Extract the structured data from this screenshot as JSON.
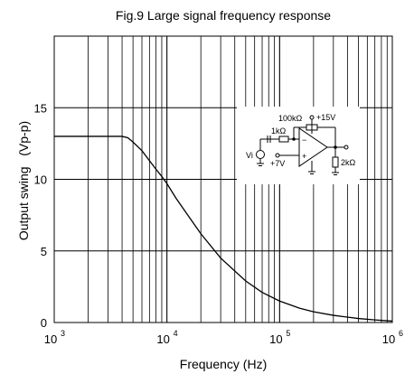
{
  "chart_data": {
    "type": "line",
    "title": "Fig.9 Large signal frequency response",
    "xlabel": "Frequency (Hz)",
    "ylabel": "Output swing   (Vp-p)",
    "x_scale": "log",
    "xlim": [
      1000,
      1000000
    ],
    "ylim": [
      0,
      20
    ],
    "x_ticks": [
      {
        "base": "10",
        "exp": "3"
      },
      {
        "base": "10",
        "exp": "4"
      },
      {
        "base": "10",
        "exp": "5"
      },
      {
        "base": "10",
        "exp": "6"
      }
    ],
    "y_ticks": [
      "0",
      "5",
      "10",
      "15"
    ],
    "grid": true,
    "series": [
      {
        "x": [
          1000,
          2000,
          3000,
          4000,
          4500,
          5000,
          6000,
          7000,
          8000,
          9000,
          10000,
          12000,
          15000,
          20000,
          30000,
          50000,
          70000,
          100000,
          150000,
          200000,
          300000,
          500000,
          700000,
          1000000
        ],
        "y": [
          13.0,
          13.0,
          13.0,
          13.0,
          12.9,
          12.6,
          12.0,
          11.3,
          10.7,
          10.2,
          9.7,
          8.7,
          7.6,
          6.2,
          4.5,
          2.9,
          2.1,
          1.5,
          1.0,
          0.75,
          0.5,
          0.28,
          0.18,
          0.1
        ]
      }
    ],
    "inset": {
      "labels": {
        "feedback": "100kΩ",
        "supply": "+15V",
        "input_r": "1kΩ",
        "source": "Vi",
        "bias": "+7V",
        "load": "2kΩ",
        "minus": "−",
        "plus": "+"
      }
    }
  }
}
